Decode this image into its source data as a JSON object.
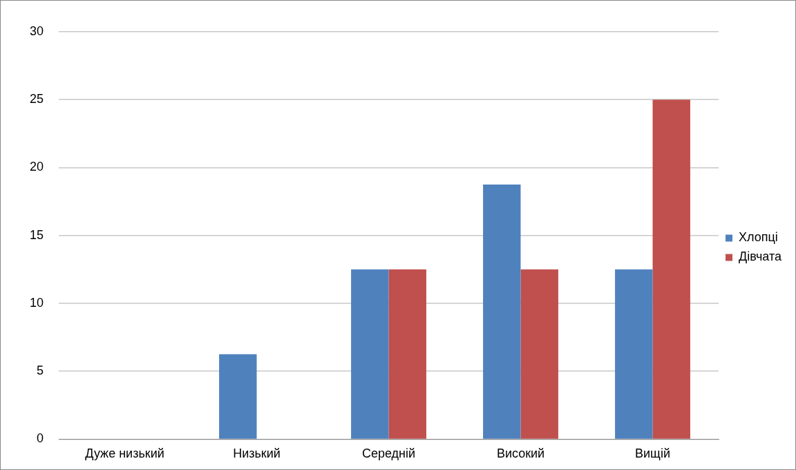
{
  "chart_data": {
    "type": "bar",
    "categories": [
      "Дуже низький",
      "Низький",
      "Середній",
      "Високий",
      "Вищій"
    ],
    "series": [
      {
        "name": "Хлопці",
        "color": "#4f81bd",
        "values": [
          0,
          6.25,
          12.5,
          18.75,
          12.5
        ]
      },
      {
        "name": "Дівчата",
        "color": "#c0504d",
        "values": [
          0,
          0,
          12.5,
          12.5,
          25
        ]
      }
    ],
    "ylim": [
      0,
      30
    ],
    "yticks": [
      0,
      5,
      10,
      15,
      20,
      25,
      30
    ],
    "grid": "y",
    "legend": "right"
  }
}
